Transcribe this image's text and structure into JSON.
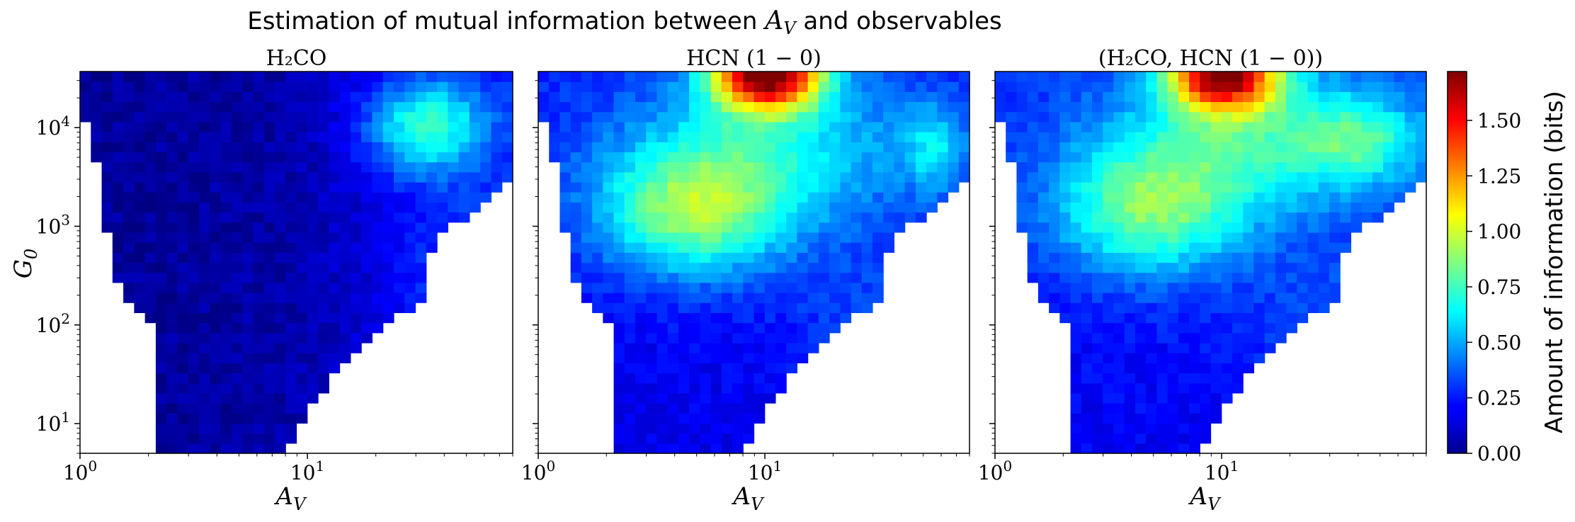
{
  "figure": {
    "title_prefix": "Estimation of mutual information between ",
    "title_var_main": "A",
    "title_var_sub": "V",
    "title_suffix": " and observables"
  },
  "colorbar": {
    "label": "Amount of information (bits)",
    "range": [
      0.0,
      1.72
    ],
    "ticks": [
      0.0,
      0.25,
      0.5,
      0.75,
      1.0,
      1.25,
      1.5
    ],
    "tick_labels": [
      "0.00",
      "0.25",
      "0.50",
      "0.75",
      "1.00",
      "1.25",
      "1.50"
    ],
    "colormap": "jet"
  },
  "chart_data": [
    {
      "type": "heatmap",
      "title": "H₂CO",
      "xlabel": "A_V",
      "ylabel": "G_0",
      "x_scale": "log",
      "y_scale": "log",
      "xlim": [
        1,
        80
      ],
      "ylim": [
        5,
        37000
      ],
      "xticks": [
        1,
        10
      ],
      "xtick_labels": [
        "10^0",
        "10^1"
      ],
      "yticks": [
        10,
        100,
        1000,
        10000
      ],
      "ytick_labels": [
        "10^1",
        "10^2",
        "10^3",
        "10^4"
      ],
      "peak": {
        "x": 30,
        "y": 10000,
        "value": 0.75
      },
      "approx_range": [
        0.0,
        0.78
      ]
    },
    {
      "type": "heatmap",
      "title": "HCN (1 − 0)",
      "xlabel": "A_V",
      "x_scale": "log",
      "y_scale": "log",
      "xlim": [
        1,
        80
      ],
      "ylim": [
        5,
        37000
      ],
      "xticks": [
        1,
        10
      ],
      "xtick_labels": [
        "10^0",
        "10^1"
      ],
      "yticks": [
        10,
        100,
        1000,
        10000
      ],
      "peak": {
        "x": 10,
        "y": 30000,
        "value": 1.7
      },
      "approx_range": [
        0.0,
        1.72
      ]
    },
    {
      "type": "heatmap",
      "title": "(H₂CO, HCN (1 − 0))",
      "xlabel": "A_V",
      "x_scale": "log",
      "y_scale": "log",
      "xlim": [
        1,
        80
      ],
      "ylim": [
        5,
        37000
      ],
      "xticks": [
        1,
        10
      ],
      "xtick_labels": [
        "10^0",
        "10^1"
      ],
      "yticks": [
        10,
        100,
        1000,
        10000
      ],
      "peak": {
        "x": 10,
        "y": 30000,
        "value": 1.6
      },
      "approx_range": [
        0.0,
        1.62
      ]
    }
  ]
}
